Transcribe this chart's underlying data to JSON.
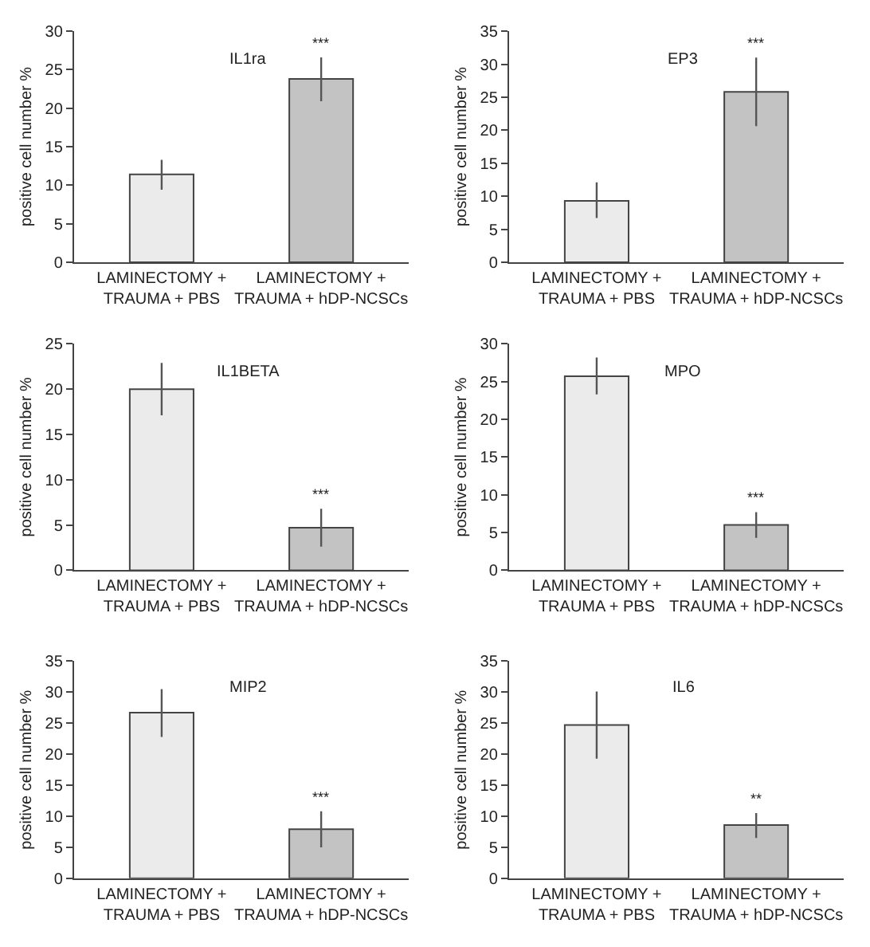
{
  "chart_data": [
    {
      "type": "bar",
      "title": "IL1ra",
      "ylabel": "positive cell number %",
      "categories": [
        "LAMINECTOMY +\nTRAUMA + PBS",
        "LAMINECTOMY +\nTRAUMA + hDP-NCSCs"
      ],
      "values": [
        11.4,
        23.8
      ],
      "errors": [
        [
          9.4,
          13.3
        ],
        [
          20.9,
          26.6
        ]
      ],
      "colors": [
        "#ebebeb",
        "#c3c3c3"
      ],
      "ylim": [
        0,
        30
      ],
      "yticks": [
        0,
        5,
        10,
        15,
        20,
        25,
        30
      ],
      "annotations": [
        {
          "text": "***",
          "x": "LAMINECTOMY +\nTRAUMA + hDP-NCSCs",
          "y": 26.6
        }
      ]
    },
    {
      "type": "bar",
      "title": "EP3",
      "ylabel": "positive cell number %",
      "categories": [
        "LAMINECTOMY +\nTRAUMA + PBS",
        "LAMINECTOMY +\nTRAUMA + hDP-NCSCs"
      ],
      "values": [
        9.3,
        25.8
      ],
      "errors": [
        [
          6.7,
          12.1
        ],
        [
          20.6,
          31.0
        ]
      ],
      "colors": [
        "#ebebeb",
        "#c3c3c3"
      ],
      "ylim": [
        0,
        35
      ],
      "yticks": [
        0,
        5,
        10,
        15,
        20,
        25,
        30,
        35
      ],
      "annotations": [
        {
          "text": "***",
          "x": "LAMINECTOMY +\nTRAUMA + hDP-NCSCs",
          "y": 31.0
        }
      ]
    },
    {
      "type": "bar",
      "title": "IL1BETA",
      "ylabel": "positive cell number %",
      "categories": [
        "LAMINECTOMY +\nTRAUMA + PBS",
        "LAMINECTOMY +\nTRAUMA + hDP-NCSCs"
      ],
      "values": [
        20.0,
        4.7
      ],
      "errors": [
        [
          17.1,
          22.9
        ],
        [
          2.6,
          6.8
        ]
      ],
      "colors": [
        "#ebebeb",
        "#c3c3c3"
      ],
      "ylim": [
        0,
        25
      ],
      "yticks": [
        0,
        5,
        10,
        15,
        20,
        25
      ],
      "annotations": [
        {
          "text": "***",
          "x": "LAMINECTOMY +\nTRAUMA + hDP-NCSCs",
          "y": 6.8
        }
      ]
    },
    {
      "type": "bar",
      "title": "MPO",
      "ylabel": "positive cell number %",
      "categories": [
        "LAMINECTOMY +\nTRAUMA + PBS",
        "LAMINECTOMY +\nTRAUMA + hDP-NCSCs"
      ],
      "values": [
        25.7,
        6.0
      ],
      "errors": [
        [
          23.3,
          28.2
        ],
        [
          4.3,
          7.7
        ]
      ],
      "colors": [
        "#ebebeb",
        "#c3c3c3"
      ],
      "ylim": [
        0,
        30
      ],
      "yticks": [
        0,
        5,
        10,
        15,
        20,
        25,
        30
      ],
      "annotations": [
        {
          "text": "***",
          "x": "LAMINECTOMY +\nTRAUMA + hDP-NCSCs",
          "y": 7.7
        }
      ]
    },
    {
      "type": "bar",
      "title": "MIP2",
      "ylabel": "positive cell number %",
      "categories": [
        "LAMINECTOMY +\nTRAUMA + PBS",
        "LAMINECTOMY +\nTRAUMA + hDP-NCSCs"
      ],
      "values": [
        26.7,
        7.9
      ],
      "errors": [
        [
          22.8,
          30.5
        ],
        [
          5.0,
          10.8
        ]
      ],
      "colors": [
        "#ebebeb",
        "#c3c3c3"
      ],
      "ylim": [
        0,
        35
      ],
      "yticks": [
        0,
        5,
        10,
        15,
        20,
        25,
        30,
        35
      ],
      "annotations": [
        {
          "text": "***",
          "x": "LAMINECTOMY +\nTRAUMA + hDP-NCSCs",
          "y": 10.8
        }
      ]
    },
    {
      "type": "bar",
      "title": "IL6",
      "ylabel": "positive cell number %",
      "categories": [
        "LAMINECTOMY +\nTRAUMA + PBS",
        "LAMINECTOMY +\nTRAUMA + hDP-NCSCs"
      ],
      "values": [
        24.7,
        8.6
      ],
      "errors": [
        [
          19.3,
          30.1
        ],
        [
          6.5,
          10.5
        ]
      ],
      "colors": [
        "#ebebeb",
        "#c3c3c3"
      ],
      "ylim": [
        0,
        35
      ],
      "yticks": [
        0,
        5,
        10,
        15,
        20,
        25,
        30,
        35
      ],
      "annotations": [
        {
          "text": "**",
          "x": "LAMINECTOMY +\nTRAUMA + hDP-NCSCs",
          "y": 10.5
        }
      ]
    }
  ]
}
